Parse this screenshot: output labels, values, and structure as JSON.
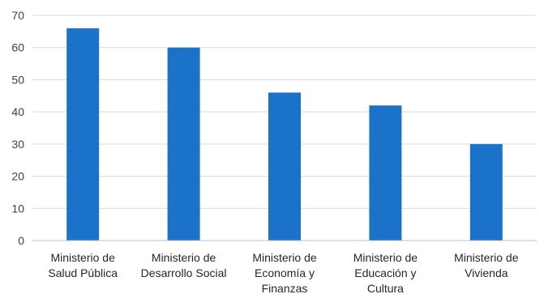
{
  "chart_data": {
    "type": "bar",
    "title": "",
    "xlabel": "",
    "ylabel": "",
    "categories": [
      [
        "Ministerio de",
        "Salud Pública"
      ],
      [
        "Ministerio de",
        "Desarrollo Social"
      ],
      [
        "Ministerio de",
        "Economía y",
        "Finanzas"
      ],
      [
        "Ministerio de",
        "Educación y",
        "Cultura"
      ],
      [
        "Ministerio de",
        "Vivienda"
      ]
    ],
    "values": [
      66,
      60,
      46,
      42,
      30
    ],
    "ylim": [
      0,
      70
    ],
    "yticks": [
      0,
      10,
      20,
      30,
      40,
      50,
      60,
      70
    ],
    "grid": true,
    "legend": "none",
    "bar_color": "#1a73c8"
  }
}
